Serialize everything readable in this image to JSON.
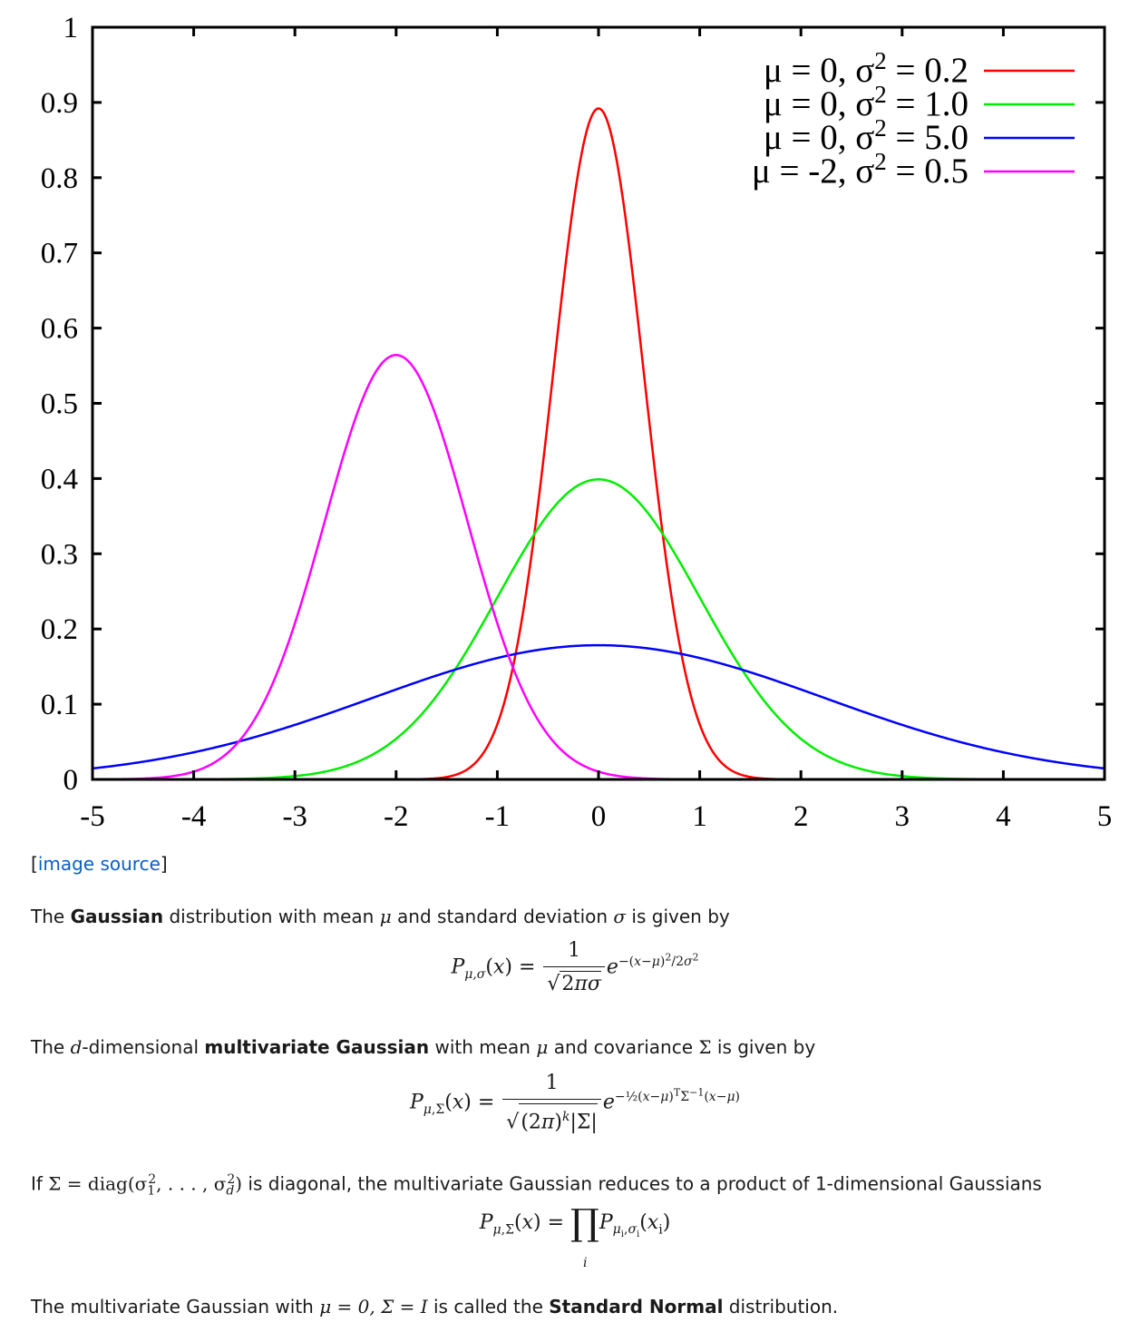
{
  "chart_data": {
    "type": "line",
    "xlim": [
      -5,
      5
    ],
    "ylim": [
      0,
      1
    ],
    "x_ticks": [
      "-5",
      "-4",
      "-3",
      "-2",
      "-1",
      "0",
      "1",
      "2",
      "3",
      "4",
      "5"
    ],
    "y_ticks": [
      "0",
      "0.1",
      "0.2",
      "0.3",
      "0.4",
      "0.5",
      "0.6",
      "0.7",
      "0.8",
      "0.9",
      "1"
    ],
    "grid": false,
    "legend_position": "top-right",
    "series": [
      {
        "mu_label": "μ =  0, σ",
        "sq": "2",
        "rest": " = 0.2",
        "mu": 0,
        "variance": 0.2,
        "color": "#ff0000"
      },
      {
        "mu_label": "μ =  0, σ",
        "sq": "2",
        "rest": " = 1.0",
        "mu": 0,
        "variance": 1.0,
        "color": "#00ee00"
      },
      {
        "mu_label": "μ =  0, σ",
        "sq": "2",
        "rest": " = 5.0",
        "mu": 0,
        "variance": 5.0,
        "color": "#0000ff"
      },
      {
        "mu_label": "μ = -2, σ",
        "sq": "2",
        "rest": " = 0.5",
        "mu": -2,
        "variance": 0.5,
        "color": "#ff00ff"
      }
    ]
  },
  "doc": {
    "source_prefix": "[",
    "source_link": "image source",
    "source_suffix": "]",
    "p1_a": "The ",
    "p1_b": "Gaussian",
    "p1_c": " distribution with mean ",
    "p1_d": "μ",
    "p1_e": " and standard deviation ",
    "p1_f": "σ",
    "p1_g": " is given by",
    "p2_a": "The ",
    "p2_b": "d",
    "p2_c": "-dimensional ",
    "p2_d": "multivariate Gaussian",
    "p2_e": " with mean ",
    "p2_f": "μ",
    "p2_g": " and covariance ",
    "p2_h": "Σ",
    "p2_i": " is given by",
    "p3_a": "If ",
    "p3_b": "Σ = diag(σ",
    "p3_c": ", . . . , σ",
    "p3_d": ")",
    "p3_e": " is diagonal, the multivariate Gaussian reduces to a product of 1-dimensional Gaussians",
    "p4_a": "The multivariate Gaussian with ",
    "p4_b": "μ = 0, Σ = I",
    "p4_c": " is called the ",
    "p4_d": "Standard Normal",
    "p4_e": " distribution."
  }
}
